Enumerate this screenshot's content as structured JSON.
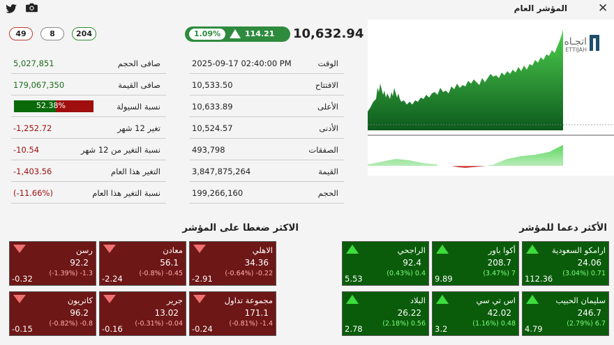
{
  "header": {
    "title": "المؤشر العام",
    "counts": {
      "declines": "49",
      "unchanged": "8",
      "advances": "204"
    },
    "index_value": "10,632.94",
    "change_pct": "1.09%",
    "change_value": "114.21"
  },
  "stats": [
    {
      "label": "الوقت",
      "value": "2025-09-17 02:40:00 PM"
    },
    {
      "label": "الافتتاح",
      "value": "10,533.50"
    },
    {
      "label": "الأعلى",
      "value": "10,633.89"
    },
    {
      "label": "الأدنى",
      "value": "10,524.57"
    },
    {
      "label": "الصفقات",
      "value": "493,798"
    },
    {
      "label": "القيمة",
      "value": "3,847,875,264"
    },
    {
      "label": "الحجم",
      "value": "199,266,160"
    }
  ],
  "summary": [
    {
      "label": "صافى الحجم",
      "value": "5,027,851"
    },
    {
      "label": "صافى القيمة",
      "value": "179,067,350"
    },
    {
      "label": "نسبة السيولة",
      "value": "52.38%",
      "fraction": 0.5238
    },
    {
      "label": "تغير 12 شهر",
      "value": "-1,252.72"
    },
    {
      "label": "نسبة التغير من 12 شهر",
      "value": "-10.54"
    },
    {
      "label": "التغير هذا العام",
      "value": "-1,403.56"
    },
    {
      "label": "نسبة التغير هذا العام",
      "value": "(-11.66%)"
    }
  ],
  "chart": {
    "watermark_ar": "اتجـاه",
    "watermark_en": "ETTIJAH"
  },
  "supporters": {
    "title": "الأكثر دعما للمؤشر",
    "items": [
      {
        "name": "ارامكو السعودية",
        "price": "24.06",
        "change": "(3.04%) 0.71",
        "effect": "112.36"
      },
      {
        "name": "أكوا باور",
        "price": "208.7",
        "change": "(3.47%) 7",
        "effect": "9.89"
      },
      {
        "name": "الراجحي",
        "price": "92.4",
        "change": "(0.43%) 0.4",
        "effect": "5.53"
      },
      {
        "name": "سليمان الحبيب",
        "price": "246.7",
        "change": "(2.79%) 6.7",
        "effect": "4.79"
      },
      {
        "name": "اس تي سي",
        "price": "42.02",
        "change": "(1.16%) 0.48",
        "effect": "3.2"
      },
      {
        "name": "البلاد",
        "price": "26.22",
        "change": "(2.18%) 0.56",
        "effect": "2.78"
      }
    ]
  },
  "pressurers": {
    "title": "الاكثر ضغطا على المؤشر",
    "items": [
      {
        "name": "الاهلي",
        "price": "34.36",
        "change": "(-0.64%) -0.22",
        "effect": "-2.91"
      },
      {
        "name": "معادن",
        "price": "56.1",
        "change": "(-0.8%) -0.45",
        "effect": "-2.24"
      },
      {
        "name": "رسن",
        "price": "92.2",
        "change": "(-1.39%) -1.3",
        "effect": "-0.32"
      },
      {
        "name": "مجموعة تداول",
        "price": "171.1",
        "change": "(-0.81%) -1.4",
        "effect": "-0.24"
      },
      {
        "name": "جرير",
        "price": "13.02",
        "change": "(-0.31%) -0.04",
        "effect": "-0.16"
      },
      {
        "name": "كاتريون",
        "price": "96.2",
        "change": "(-0.82%) -0.8",
        "effect": "-0.15"
      }
    ]
  }
}
